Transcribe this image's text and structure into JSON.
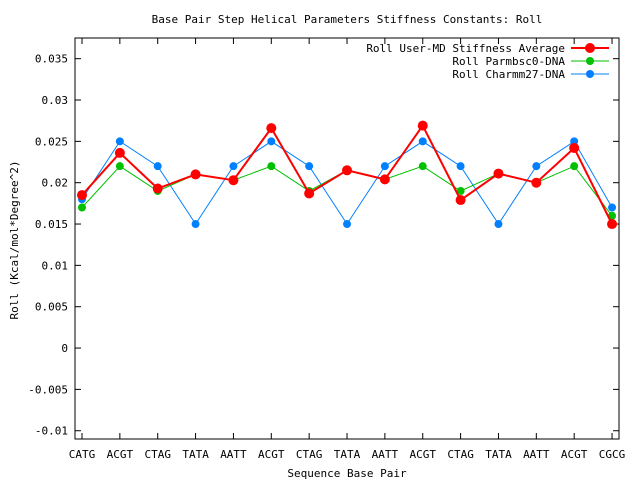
{
  "chart_data": {
    "type": "line",
    "title": "Base Pair Step Helical Parameters Stiffness Constants: Roll",
    "xlabel": "Sequence Base Pair",
    "ylabel": "Roll (Kcal/mol*Degree^2)",
    "categories": [
      "CATG",
      "ACGT",
      "CTAG",
      "TATA",
      "AATT",
      "ACGT",
      "CTAG",
      "TATA",
      "AATT",
      "ACGT",
      "CTAG",
      "TATA",
      "AATT",
      "ACGT",
      "CGCG"
    ],
    "ylim": [
      -0.011,
      0.0375
    ],
    "yticks": [
      -0.01,
      -0.005,
      0,
      0.005,
      0.01,
      0.015,
      0.02,
      0.025,
      0.03,
      0.035
    ],
    "ytick_labels": [
      "-0.01",
      "-0.005",
      "0",
      "0.005",
      "0.01",
      "0.015",
      "0.02",
      "0.025",
      "0.03",
      "0.035"
    ],
    "grid": false,
    "legend_position": "top-right",
    "series": [
      {
        "name": "Roll User-MD Stiffness Average",
        "color": "#ff0000",
        "values": [
          0.0185,
          0.0236,
          0.0193,
          0.021,
          0.0203,
          0.0266,
          0.0187,
          0.0215,
          0.0204,
          0.0269,
          0.0179,
          0.0211,
          0.02,
          0.0242,
          0.015
        ]
      },
      {
        "name": "Roll Parmbsc0-DNA",
        "color": "#00c000",
        "values": [
          0.017,
          0.022,
          0.019,
          0.021,
          0.0203,
          0.022,
          0.019,
          0.0215,
          0.0204,
          0.022,
          0.019,
          0.0211,
          0.02,
          0.022,
          0.016
        ]
      },
      {
        "name": "Roll Charmm27-DNA",
        "color": "#0080ff",
        "values": [
          0.018,
          0.025,
          0.022,
          0.015,
          0.022,
          0.025,
          0.022,
          0.015,
          0.022,
          0.025,
          0.022,
          0.015,
          0.022,
          0.025,
          0.017
        ]
      }
    ]
  }
}
